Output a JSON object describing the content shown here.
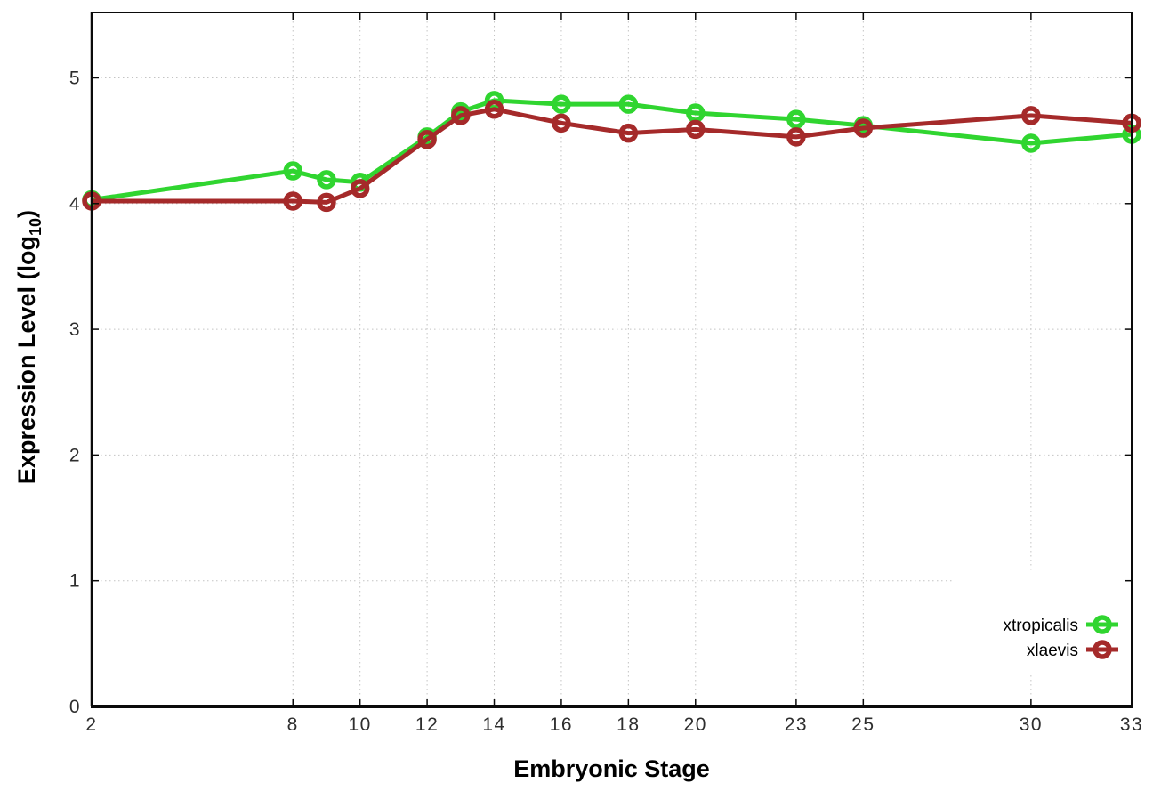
{
  "page": {
    "background": "#ffffff"
  },
  "chart_data": {
    "type": "line",
    "title": "",
    "xlabel": "Embryonic Stage",
    "ylabel": "Expression Level (log10)",
    "ylabel_parts": {
      "main": "Expression Level (log",
      "sub": "10",
      "suffix": ")"
    },
    "xlim": [
      2,
      33
    ],
    "ylim": [
      0,
      5.52
    ],
    "xticks": [
      2,
      8,
      10,
      12,
      14,
      16,
      18,
      20,
      23,
      25,
      30,
      33
    ],
    "yticks": [
      0,
      1,
      2,
      3,
      4,
      5
    ],
    "grid": true,
    "x": [
      2,
      8,
      9,
      10,
      12,
      13,
      14,
      16,
      18,
      20,
      23,
      25,
      30,
      33
    ],
    "series": [
      {
        "name": "xtropicalis",
        "color": "#30d530",
        "values": [
          4.03,
          4.26,
          4.19,
          4.17,
          4.53,
          4.73,
          4.82,
          4.79,
          4.79,
          4.72,
          4.67,
          4.62,
          4.48,
          4.55
        ]
      },
      {
        "name": "xlaevis",
        "color": "#a52a2a",
        "values": [
          4.02,
          4.02,
          4.01,
          4.12,
          4.51,
          4.7,
          4.75,
          4.64,
          4.56,
          4.59,
          4.53,
          4.6,
          4.7,
          4.64
        ]
      }
    ],
    "legend": {
      "position": "inside-bottom-right",
      "entries": [
        "xtropicalis",
        "xlaevis"
      ]
    },
    "style": {
      "axis_color": "#0a0a0a",
      "grid_color": "#c4c4c4",
      "tick_label_color": "#2e2e2e",
      "marker": "open-circle"
    }
  }
}
